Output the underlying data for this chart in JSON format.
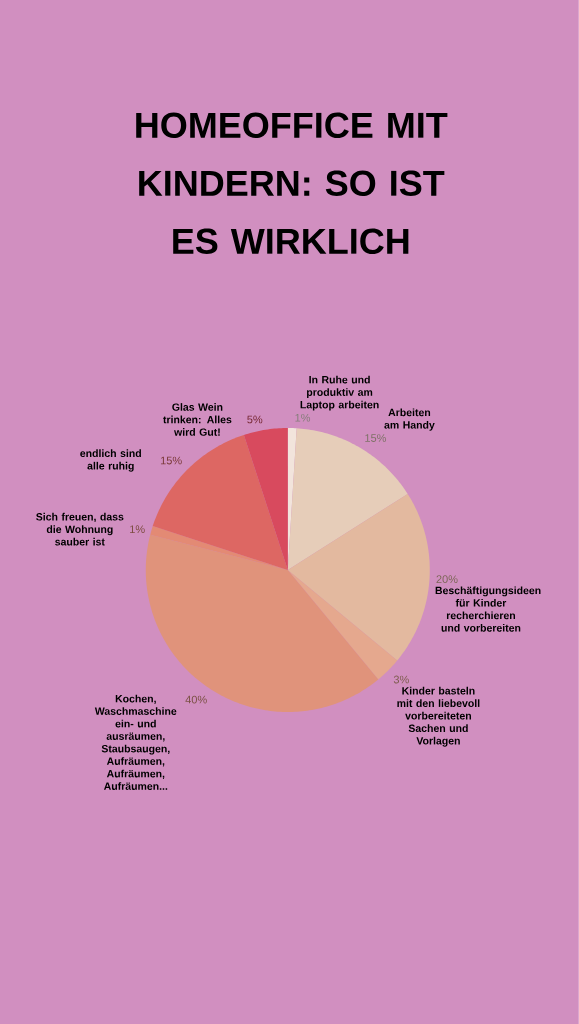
{
  "chart_data": {
    "type": "pie",
    "title": "HOMEOFFICE MIT KINDERN: SO IST ES WIRKLICH",
    "categories": [
      "In Ruhe und produktiv am Laptop arbeiten",
      "Arbeiten am Handy",
      "Beschäftigungsideen für Kinder recherchieren und vorbereiten",
      "Kinder basteln mit den liebevoll vorbereiteten Sachen und Vorlagen",
      "Kochen, Waschmaschine ein- und ausräumen, Staubsaugen, Aufräumen, Aufräumen, Aufräumen...",
      "Sich freuen, dass die Wohnung sauber ist",
      "endlich sind alle ruhig",
      "Glas Wein trinken: Alles wird Gut!"
    ],
    "values": [
      1,
      15,
      20,
      3,
      40,
      1,
      15,
      5
    ],
    "value_labels": [
      "1%",
      "15%",
      "20%",
      "3%",
      "40%",
      "1%",
      "15%",
      "5%"
    ],
    "colors": [
      "#f2e4dc",
      "#e6cdb9",
      "#e3b99f",
      "#e5a88e",
      "#e0937b",
      "#e38a74",
      "#dd6763",
      "#d84a5e"
    ]
  }
}
